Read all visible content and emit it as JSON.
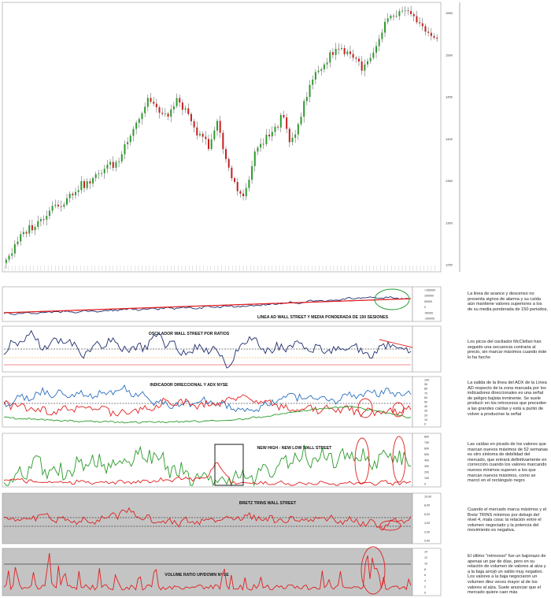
{
  "chart_data": [
    {
      "type": "candlestick",
      "title": "",
      "y_ticks": [
        "1250",
        "1300",
        "1350",
        "1400",
        "1450",
        "1500",
        "1550"
      ],
      "ylim": [
        1250,
        1560
      ],
      "colors": {
        "up": "#2e9a2e",
        "down": "#c81e1e",
        "wick": "#222222"
      }
    },
    {
      "type": "line",
      "title": "LINEA AD WALL STREET Y MEDIA PONDERADA DE 150 SESIONES",
      "y_ticks": [
        "+150000",
        "100000",
        "50000",
        "0",
        "-50000",
        "-100000"
      ],
      "series": [
        {
          "color": "#1f2d6e"
        },
        {
          "color": "#e02020"
        }
      ],
      "annotation": "green circle around the last values"
    },
    {
      "type": "line",
      "title": "OSCILADOR WALL STREET POR RATIOS",
      "series": [
        {
          "color": "#1f2d6e"
        }
      ],
      "reference_lines": [
        "black dashed",
        "orange dashed",
        "red"
      ],
      "annotation": "red descending trendline over the last peaks"
    },
    {
      "type": "line",
      "title": "INDICADOR DIRECCIONAL Y ADX  NYSE",
      "y_ticks": [
        "100",
        "90",
        "80",
        "70",
        "60",
        "50",
        "40",
        "30",
        "20",
        "10",
        "0"
      ],
      "series": [
        {
          "color": "#2a6fbf"
        },
        {
          "color": "#e02020"
        },
        {
          "color": "#2a9a2a"
        }
      ],
      "annotation": "two red circles marking ADX crossings"
    },
    {
      "type": "line",
      "title": "NEW HIGH - NEW LOW WALL STREET",
      "y_ticks": [
        "800",
        "700",
        "600",
        "500",
        "400",
        "300",
        "200",
        "100",
        "0"
      ],
      "series": [
        {
          "color": "#2a9a2a"
        },
        {
          "color": "#e02020"
        }
      ],
      "annotation": "black rectangle mid-chart and two red ovals at the right"
    },
    {
      "type": "line",
      "title": "BRETZ TRINS WALL STREET",
      "y_ticks": [
        "10,00",
        "8,00",
        "6,00",
        "4,00",
        "2,00",
        "0,00"
      ],
      "series": [
        {
          "color": "#e02020"
        }
      ],
      "background": "#c4c4c4"
    },
    {
      "type": "line",
      "title": "VOLUME RATIO UP/DOWN NYSE",
      "y_ticks": [
        "14",
        "12",
        "10",
        "8",
        "6",
        "4",
        "2",
        "0"
      ],
      "series": [
        {
          "color": "#e02020"
        }
      ],
      "background": "#c4c4c4"
    }
  ],
  "notes": [
    "La linea de avance y descenso no presenta signos de alarma y su caída aún mantiene valores superiores a los de su media ponderada de 150 periodos.",
    "Los picos del oscilador McClellan han seguido una secuencia contraria al precio, sin marcar máximos cuando éste lo ha hecho",
    "La salida de la línea del ADX de la Línea AD respecto de la zona marcada por los indicadores direccionales es una señal de peligro bajista inminente. Se suele producir en los retrocesos que preceden a las grandes caídas y está a punto de volver a producirse la señal",
    "Las caídas en picado de los valores que marcan nuevos máximos de 52 semanas es otro síntoma de debilidad del mercado, que entrará definitivamente en corrección cuando los valores marcando nuevos mínimos superen a los que marcan nuevos máximos, como se marcó en el rectángulo negro",
    "Cuando el mercado marca máximos y el Bretz TRINS mínimos por debajo del nivel 4, mala cosa: la relación entre el volumen negociado y la potencia del movimiento es negativa.",
    "El último \"retroceso\" fue un bajonazo de apenas un par de días, pero en su relación de volumen de valores al alza y a la baja arrojó un saldo muy negativo. Los valores a la baja negociaron un volumen diez veces mayor al de los valores al alza. Suele anunciar que el mercado quiere caer más"
  ]
}
